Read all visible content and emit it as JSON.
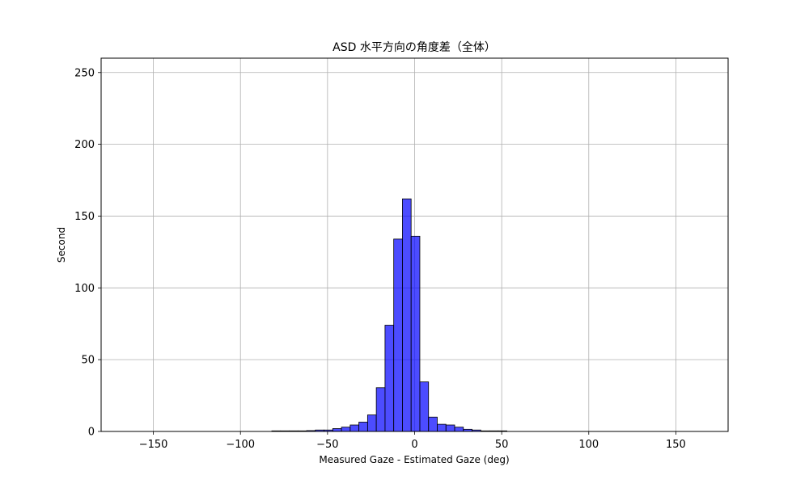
{
  "chart_data": {
    "type": "bar",
    "title": "ASD 水平方向の角度差（全体）",
    "xlabel": "Measured Gaze - Estimated Gaze (deg)",
    "ylabel": "Second",
    "xlim": [
      -180,
      180
    ],
    "ylim": [
      0,
      260
    ],
    "xticks": [
      -150,
      -100,
      -50,
      0,
      50,
      100,
      150
    ],
    "xtick_labels": [
      "−150",
      "−100",
      "−50",
      "0",
      "50",
      "100",
      "150"
    ],
    "yticks": [
      0,
      50,
      100,
      150,
      200,
      250
    ],
    "ytick_labels": [
      "0",
      "50",
      "100",
      "150",
      "200",
      "250"
    ],
    "grid": true,
    "bar_color": "#0000ff",
    "bar_opacity": 0.7,
    "bar_edge_color": "#000000",
    "bins": [
      {
        "x0": -82,
        "x1": -77,
        "value": 0.4
      },
      {
        "x0": -77,
        "x1": -72,
        "value": 0.4
      },
      {
        "x0": -72,
        "x1": -67,
        "value": 0.4
      },
      {
        "x0": -67,
        "x1": -62,
        "value": 0.4
      },
      {
        "x0": -62,
        "x1": -57,
        "value": 0.6
      },
      {
        "x0": -57,
        "x1": -52,
        "value": 1
      },
      {
        "x0": -52,
        "x1": -47,
        "value": 1
      },
      {
        "x0": -47,
        "x1": -42,
        "value": 2
      },
      {
        "x0": -42,
        "x1": -37,
        "value": 3
      },
      {
        "x0": -37,
        "x1": -32,
        "value": 4.5
      },
      {
        "x0": -32,
        "x1": -27,
        "value": 6.5
      },
      {
        "x0": -27,
        "x1": -22,
        "value": 11.5
      },
      {
        "x0": -22,
        "x1": -17,
        "value": 30.5
      },
      {
        "x0": -17,
        "x1": -12,
        "value": 74
      },
      {
        "x0": -12,
        "x1": -7,
        "value": 134
      },
      {
        "x0": -7,
        "x1": -2,
        "value": 162
      },
      {
        "x0": -2,
        "x1": 3,
        "value": 136
      },
      {
        "x0": 3,
        "x1": 8,
        "value": 34.5
      },
      {
        "x0": 8,
        "x1": 13,
        "value": 10
      },
      {
        "x0": 13,
        "x1": 18,
        "value": 5
      },
      {
        "x0": 18,
        "x1": 23,
        "value": 4.5
      },
      {
        "x0": 23,
        "x1": 28,
        "value": 3
      },
      {
        "x0": 28,
        "x1": 33,
        "value": 1.5
      },
      {
        "x0": 33,
        "x1": 38,
        "value": 1
      },
      {
        "x0": 38,
        "x1": 43,
        "value": 0.4
      },
      {
        "x0": 43,
        "x1": 48,
        "value": 0.4
      },
      {
        "x0": 48,
        "x1": 53,
        "value": 0.4
      }
    ]
  }
}
